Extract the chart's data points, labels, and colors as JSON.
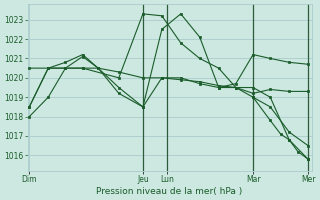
{
  "background_color": "#cce8e0",
  "grid_color": "#aacccc",
  "line_color": "#1a5c2a",
  "vline_color": "#2d5a3a",
  "xlabel": "Pression niveau de la mer( hPa )",
  "ylim": [
    1015.2,
    1023.8
  ],
  "yticks": [
    1016,
    1017,
    1018,
    1019,
    1020,
    1021,
    1022,
    1023
  ],
  "xlim": [
    -0.05,
    8.2
  ],
  "xtick_positions": [
    0,
    3.3,
    4.0,
    6.5,
    8.1
  ],
  "xtick_labels": [
    "Dim",
    "Jeu",
    "Lun",
    "Mar",
    "Mer"
  ],
  "vlines": [
    3.3,
    4.0,
    6.5,
    8.1
  ],
  "series": [
    {
      "x": [
        0.0,
        0.55,
        1.05,
        1.55,
        2.6,
        3.3,
        3.85,
        4.4,
        4.95,
        5.5,
        6.0,
        6.5,
        7.0,
        7.55,
        8.1
      ],
      "y": [
        1018.0,
        1019.0,
        1020.5,
        1020.5,
        1020.0,
        1023.3,
        1023.2,
        1021.8,
        1021.0,
        1020.5,
        1019.5,
        1019.2,
        1019.4,
        1019.3,
        1019.3
      ]
    },
    {
      "x": [
        0.0,
        0.55,
        1.05,
        1.55,
        2.0,
        2.6,
        3.3,
        3.85,
        4.4,
        4.95,
        5.5,
        6.0,
        6.5,
        7.0,
        7.55,
        8.1
      ],
      "y": [
        1020.5,
        1020.5,
        1020.8,
        1021.2,
        1020.5,
        1020.3,
        1020.0,
        1020.0,
        1019.9,
        1019.8,
        1019.6,
        1019.5,
        1019.5,
        1019.0,
        1016.8,
        1015.8
      ]
    },
    {
      "x": [
        0.0,
        0.55,
        1.05,
        1.55,
        2.0,
        2.6,
        3.3,
        3.85,
        4.4,
        4.95,
        5.5,
        6.0,
        6.5,
        7.0,
        7.55,
        8.1
      ],
      "y": [
        1018.5,
        1020.5,
        1020.5,
        1021.1,
        1020.5,
        1019.2,
        1018.5,
        1022.5,
        1023.3,
        1022.1,
        1019.5,
        1019.7,
        1021.2,
        1021.0,
        1020.8,
        1020.7
      ]
    },
    {
      "x": [
        0.0,
        0.55,
        1.05,
        1.55,
        2.0,
        2.6,
        3.3,
        3.85,
        4.4,
        4.95,
        5.5,
        6.0,
        6.5,
        7.0,
        7.55,
        8.1
      ],
      "y": [
        1018.5,
        1020.5,
        1020.5,
        1020.5,
        1020.5,
        1019.5,
        1018.5,
        1020.0,
        1020.0,
        1019.7,
        1019.5,
        1019.5,
        1019.0,
        1018.5,
        1017.2,
        1016.5
      ]
    },
    {
      "x": [
        6.5,
        7.0,
        7.3,
        7.55,
        7.8,
        8.1
      ],
      "y": [
        1019.0,
        1017.8,
        1017.1,
        1016.8,
        1016.2,
        1015.8
      ]
    }
  ]
}
